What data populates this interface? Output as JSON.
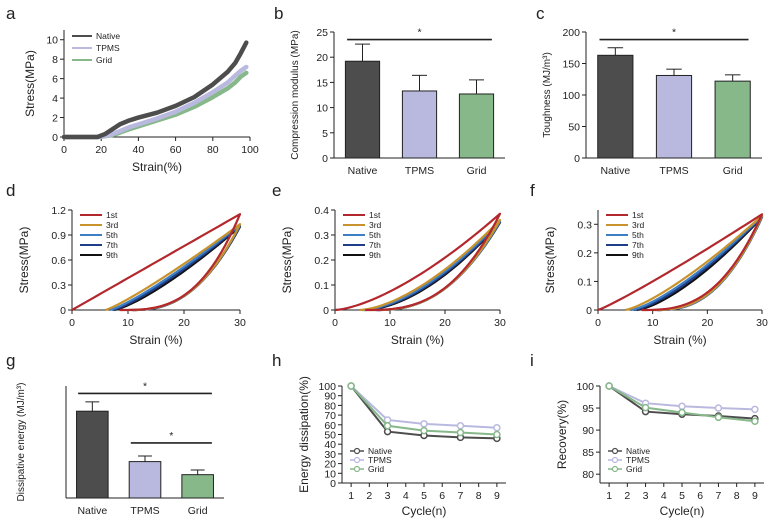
{
  "panels": {
    "a": "a",
    "b": "b",
    "c": "c",
    "d": "d",
    "e": "e",
    "f": "f",
    "g": "g",
    "h": "h",
    "i": "i"
  },
  "colors": {
    "native": "#4d4d4d",
    "tpms": "#b9b9e0",
    "grid": "#86b88a",
    "cycles": [
      "#b3282d",
      "#c8932c",
      "#3d7fc4",
      "#1f3e8a",
      "#111111"
    ]
  },
  "chart_data": [
    {
      "id": "a",
      "type": "line",
      "xlabel": "Strain(%)",
      "ylabel": "Stress(MPa)",
      "xlim": [
        0,
        100
      ],
      "ylim": [
        0,
        11
      ],
      "xticks": [
        "0",
        "20",
        "40",
        "60",
        "80",
        "100"
      ],
      "yticks": [
        "0",
        "2",
        "4",
        "6",
        "8",
        "10"
      ],
      "series": [
        {
          "name": "Native",
          "x": [
            0,
            18,
            22,
            26,
            30,
            35,
            40,
            50,
            60,
            70,
            80,
            88,
            92,
            95,
            98
          ],
          "y": [
            0,
            0,
            0.3,
            0.8,
            1.3,
            1.7,
            2.0,
            2.5,
            3.2,
            4.1,
            5.4,
            6.7,
            7.6,
            8.6,
            9.7
          ]
        },
        {
          "name": "TPMS",
          "x": [
            0,
            18,
            22,
            26,
            30,
            35,
            40,
            50,
            60,
            70,
            80,
            88,
            92,
            95,
            98
          ],
          "y": [
            0,
            0,
            0.1,
            0.3,
            0.6,
            1.0,
            1.3,
            1.9,
            2.6,
            3.5,
            4.6,
            5.6,
            6.3,
            6.8,
            7.2
          ]
        },
        {
          "name": "Grid",
          "x": [
            0,
            18,
            22,
            26,
            30,
            35,
            40,
            50,
            60,
            70,
            80,
            88,
            92,
            95,
            98
          ],
          "y": [
            0,
            0,
            0.08,
            0.2,
            0.45,
            0.8,
            1.1,
            1.7,
            2.3,
            3.1,
            4.1,
            5.0,
            5.6,
            6.2,
            6.6
          ]
        }
      ]
    },
    {
      "id": "b",
      "type": "bar",
      "categories": [
        "Native",
        "TPMS",
        "Grid"
      ],
      "values": [
        19.2,
        13.3,
        12.7
      ],
      "errors": [
        3.4,
        3.1,
        2.8
      ],
      "ylabel": "Compression modulus (MPa)",
      "ylim": [
        0,
        25
      ],
      "yticks": [
        "0",
        "5",
        "10",
        "15",
        "20",
        "25"
      ],
      "significance": [
        {
          "from": 0,
          "to": 2,
          "label": "*",
          "y": 23.5
        }
      ]
    },
    {
      "id": "c",
      "type": "bar",
      "categories": [
        "Native",
        "TPMS",
        "Grid"
      ],
      "values": [
        163,
        131,
        122
      ],
      "errors": [
        12,
        10,
        10
      ],
      "ylabel": "Toughness (MJ/m³)",
      "ylim": [
        0,
        200
      ],
      "yticks": [
        "0",
        "50",
        "100",
        "150",
        "200"
      ],
      "significance": [
        {
          "from": 0,
          "to": 2,
          "label": "*",
          "y": 188
        }
      ]
    },
    {
      "id": "d",
      "type": "line",
      "xlabel": "Strain (%)",
      "ylabel": "Stress(MPa)",
      "xlim": [
        0,
        30
      ],
      "ylim": [
        0,
        1.2
      ],
      "xticks": [
        "0",
        "10",
        "20",
        "30"
      ],
      "yticks": [
        "0",
        "0.3",
        "0.6",
        "0.9",
        "1.2"
      ],
      "loops": [
        {
          "name": "1st",
          "x0": 0,
          "xr": 8.5,
          "peak": 1.15,
          "up": 1.0,
          "down": 3.0
        },
        {
          "name": "3rd",
          "x0": 6,
          "xr": 10,
          "peak": 1.03,
          "up": 1.15,
          "down": 2.6
        },
        {
          "name": "5th",
          "x0": 6.8,
          "xr": 10.5,
          "peak": 1.02,
          "up": 1.2,
          "down": 2.5
        },
        {
          "name": "7th",
          "x0": 7.2,
          "xr": 10.8,
          "peak": 1.01,
          "up": 1.25,
          "down": 2.45
        },
        {
          "name": "9th",
          "x0": 7.5,
          "xr": 11,
          "peak": 1.0,
          "up": 1.3,
          "down": 2.4
        }
      ]
    },
    {
      "id": "e",
      "type": "line",
      "xlabel": "Strain (%)",
      "ylabel": "Stress(MPa)",
      "xlim": [
        0,
        30
      ],
      "ylim": [
        0,
        0.4
      ],
      "xticks": [
        "0",
        "10",
        "20",
        "30"
      ],
      "yticks": [
        "0",
        "0.1",
        "0.2",
        "0.3",
        "0.4"
      ],
      "loops": [
        {
          "name": "1st",
          "x0": 0,
          "xr": 5.5,
          "peak": 0.385,
          "up": 1.5,
          "down": 2.8
        },
        {
          "name": "3rd",
          "x0": 4.5,
          "xr": 7,
          "peak": 0.36,
          "up": 1.6,
          "down": 2.5
        },
        {
          "name": "5th",
          "x0": 4.9,
          "xr": 7.3,
          "peak": 0.355,
          "up": 1.65,
          "down": 2.45
        },
        {
          "name": "7th",
          "x0": 5.1,
          "xr": 7.5,
          "peak": 0.352,
          "up": 1.7,
          "down": 2.4
        },
        {
          "name": "9th",
          "x0": 5.3,
          "xr": 7.7,
          "peak": 0.35,
          "up": 1.75,
          "down": 2.35
        }
      ]
    },
    {
      "id": "f",
      "type": "line",
      "xlabel": "Strain (%)",
      "ylabel": "Stress(MPa)",
      "xlim": [
        0,
        30
      ],
      "ylim": [
        0,
        0.35
      ],
      "xticks": [
        "0",
        "10",
        "20",
        "30"
      ],
      "yticks": [
        "0",
        "0.1",
        "0.2",
        "0.3"
      ],
      "loops": [
        {
          "name": "1st",
          "x0": 0,
          "xr": 8,
          "peak": 0.335,
          "up": 1.1,
          "down": 2.8
        },
        {
          "name": "3rd",
          "x0": 5,
          "xr": 10,
          "peak": 0.33,
          "up": 1.3,
          "down": 2.6
        },
        {
          "name": "5th",
          "x0": 6,
          "xr": 10.5,
          "peak": 0.328,
          "up": 1.35,
          "down": 2.55
        },
        {
          "name": "7th",
          "x0": 6.5,
          "xr": 10.8,
          "peak": 0.327,
          "up": 1.4,
          "down": 2.5
        },
        {
          "name": "9th",
          "x0": 7,
          "xr": 11,
          "peak": 0.325,
          "up": 1.45,
          "down": 2.45
        }
      ]
    },
    {
      "id": "g",
      "type": "bar",
      "categories": [
        "Native",
        "TPMS",
        "Grid"
      ],
      "values": [
        9.3,
        3.9,
        2.5
      ],
      "errors": [
        1.0,
        0.6,
        0.5
      ],
      "ylabel": "Dissipative energy (MJ/m³)",
      "ylim": [
        0,
        12
      ],
      "yticks": [],
      "significance": [
        {
          "from": 0,
          "to": 2,
          "label": "*",
          "y": 11.2
        },
        {
          "from": 1,
          "to": 2,
          "label": "*",
          "y": 5.9
        }
      ]
    },
    {
      "id": "h",
      "type": "line",
      "xlabel": "Cycle(n)",
      "ylabel": "Energy dissipation(%)",
      "xlim": [
        0.5,
        9.5
      ],
      "ylim": [
        0,
        100
      ],
      "xticks": [
        "1",
        "2",
        "3",
        "4",
        "5",
        "6",
        "7",
        "8",
        "9"
      ],
      "yticks": [
        "0",
        "10",
        "20",
        "30",
        "40",
        "50",
        "60",
        "70",
        "80",
        "90",
        "100"
      ],
      "x": [
        1,
        3,
        5,
        7,
        9
      ],
      "series": [
        {
          "name": "Native",
          "values": [
            100,
            53,
            49,
            47,
            46
          ]
        },
        {
          "name": "TPMS",
          "values": [
            100,
            65,
            61,
            59,
            57
          ]
        },
        {
          "name": "Grid",
          "values": [
            100,
            59,
            54,
            52,
            50
          ]
        }
      ]
    },
    {
      "id": "i",
      "type": "line",
      "xlabel": "Cycle(n)",
      "ylabel": "Recovery(%)",
      "xlim": [
        0.5,
        9.5
      ],
      "ylim": [
        78,
        100
      ],
      "xticks": [
        "1",
        "2",
        "3",
        "4",
        "5",
        "6",
        "7",
        "8",
        "9"
      ],
      "yticks": [
        "80",
        "85",
        "90",
        "95",
        "100"
      ],
      "x": [
        1,
        3,
        5,
        7,
        9
      ],
      "series": [
        {
          "name": "Native",
          "values": [
            100,
            94.2,
            93.6,
            93.2,
            92.6
          ]
        },
        {
          "name": "TPMS",
          "values": [
            100,
            96.1,
            95.4,
            95.0,
            94.7
          ]
        },
        {
          "name": "Grid",
          "values": [
            100,
            95.1,
            94.0,
            92.9,
            92.0
          ]
        }
      ]
    }
  ]
}
